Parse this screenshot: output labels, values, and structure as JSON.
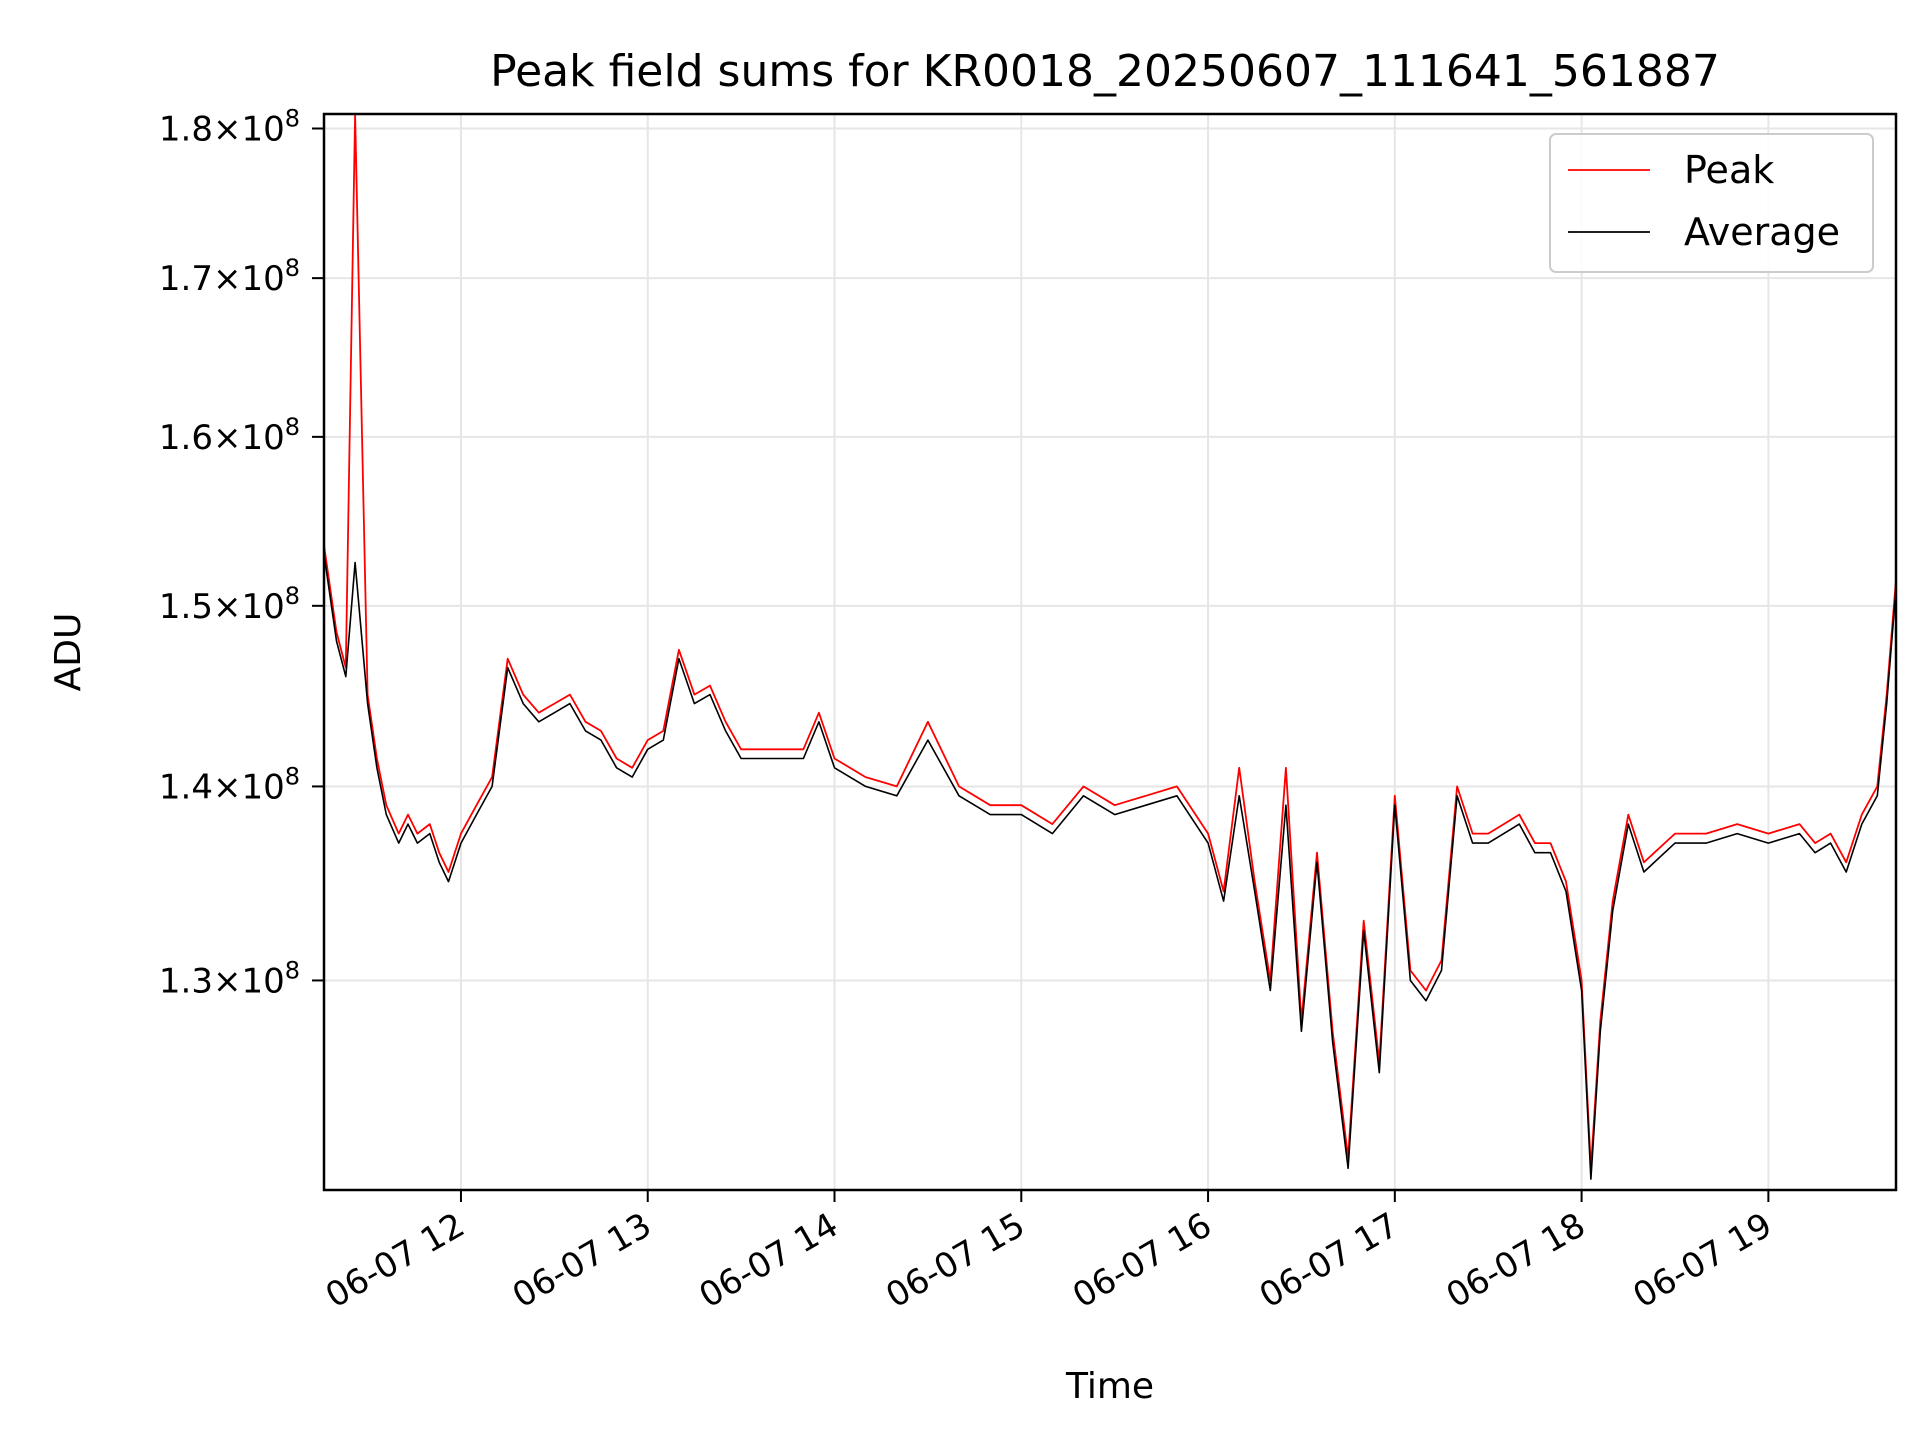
{
  "chart_data": {
    "type": "line",
    "title": "Peak field sums for KR0018_20250607_111641_561887",
    "xlabel": "Time",
    "ylabel": "ADU",
    "y_scale": "log",
    "xlim": [
      "2025-06-07 11:16",
      "2025-06-07 19:41"
    ],
    "ylim": [
      120000000,
      181000000
    ],
    "grid": true,
    "legend_position": "top-right",
    "x_ticks": [
      {
        "t": "2025-06-07 12:00",
        "label": "06-07 12"
      },
      {
        "t": "2025-06-07 13:00",
        "label": "06-07 13"
      },
      {
        "t": "2025-06-07 14:00",
        "label": "06-07 14"
      },
      {
        "t": "2025-06-07 15:00",
        "label": "06-07 15"
      },
      {
        "t": "2025-06-07 16:00",
        "label": "06-07 16"
      },
      {
        "t": "2025-06-07 17:00",
        "label": "06-07 17"
      },
      {
        "t": "2025-06-07 18:00",
        "label": "06-07 18"
      },
      {
        "t": "2025-06-07 19:00",
        "label": "06-07 19"
      }
    ],
    "y_ticks": [
      {
        "value": 130000000,
        "mantissa": "1.3",
        "exponent": "8"
      },
      {
        "value": 140000000,
        "mantissa": "1.4",
        "exponent": "8"
      },
      {
        "value": 150000000,
        "mantissa": "1.5",
        "exponent": "8"
      },
      {
        "value": 160000000,
        "mantissa": "1.6",
        "exponent": "8"
      },
      {
        "value": 170000000,
        "mantissa": "1.7",
        "exponent": "8"
      },
      {
        "value": 180000000,
        "mantissa": "1.8",
        "exponent": "8"
      }
    ],
    "times_hhmm": [
      "11:16",
      "11:20",
      "11:23",
      "11:26",
      "11:30",
      "11:33",
      "11:36",
      "11:40",
      "11:43",
      "11:46",
      "11:50",
      "11:53",
      "11:56",
      "12:00",
      "12:05",
      "12:10",
      "12:15",
      "12:20",
      "12:25",
      "12:30",
      "12:35",
      "12:40",
      "12:45",
      "12:50",
      "12:55",
      "13:00",
      "13:05",
      "13:10",
      "13:15",
      "13:20",
      "13:25",
      "13:30",
      "13:35",
      "13:40",
      "13:45",
      "13:50",
      "13:55",
      "14:00",
      "14:10",
      "14:20",
      "14:30",
      "14:40",
      "14:50",
      "15:00",
      "15:10",
      "15:20",
      "15:30",
      "15:40",
      "15:50",
      "16:00",
      "16:05",
      "16:10",
      "16:15",
      "16:20",
      "16:25",
      "16:30",
      "16:35",
      "16:40",
      "16:45",
      "16:50",
      "16:55",
      "17:00",
      "17:05",
      "17:10",
      "17:15",
      "17:20",
      "17:25",
      "17:30",
      "17:35",
      "17:40",
      "17:45",
      "17:50",
      "17:55",
      "18:00",
      "18:03",
      "18:06",
      "18:10",
      "18:15",
      "18:20",
      "18:30",
      "18:40",
      "18:50",
      "19:00",
      "19:10",
      "19:15",
      "19:20",
      "19:25",
      "19:30",
      "19:35",
      "19:38",
      "19:41"
    ],
    "series": [
      {
        "name": "Peak",
        "color": "#ff0000",
        "values": [
          153500000,
          148500000,
          146500000,
          181000000,
          145000000,
          141500000,
          139000000,
          137500000,
          138500000,
          137500000,
          138000000,
          136500000,
          135500000,
          137500000,
          139000000,
          140500000,
          147000000,
          145000000,
          144000000,
          144500000,
          145000000,
          143500000,
          143000000,
          141500000,
          141000000,
          142500000,
          143000000,
          147500000,
          145000000,
          145500000,
          143500000,
          142000000,
          142000000,
          142000000,
          142000000,
          142000000,
          144000000,
          141500000,
          140500000,
          140000000,
          143500000,
          140000000,
          139000000,
          139000000,
          138000000,
          140000000,
          139000000,
          139500000,
          140000000,
          137500000,
          134500000,
          141000000,
          135000000,
          130000000,
          141000000,
          128000000,
          136500000,
          127500000,
          121500000,
          133000000,
          126000000,
          139500000,
          130500000,
          129500000,
          131000000,
          140000000,
          137500000,
          137500000,
          138000000,
          138500000,
          137000000,
          137000000,
          135000000,
          130000000,
          121000000,
          128000000,
          134000000,
          138500000,
          136000000,
          137500000,
          137500000,
          138000000,
          137500000,
          138000000,
          137000000,
          137500000,
          136000000,
          138500000,
          140000000,
          145000000,
          151500000
        ]
      },
      {
        "name": "Average",
        "color": "#000000",
        "values": [
          153000000,
          148000000,
          146000000,
          152500000,
          144500000,
          141000000,
          138500000,
          137000000,
          138000000,
          137000000,
          137500000,
          136000000,
          135000000,
          137000000,
          138500000,
          140000000,
          146500000,
          144500000,
          143500000,
          144000000,
          144500000,
          143000000,
          142500000,
          141000000,
          140500000,
          142000000,
          142500000,
          147000000,
          144500000,
          145000000,
          143000000,
          141500000,
          141500000,
          141500000,
          141500000,
          141500000,
          143500000,
          141000000,
          140000000,
          139500000,
          142500000,
          139500000,
          138500000,
          138500000,
          137500000,
          139500000,
          138500000,
          139000000,
          139500000,
          137000000,
          134000000,
          139500000,
          134500000,
          129500000,
          139000000,
          127500000,
          136000000,
          127000000,
          121000000,
          132500000,
          125500000,
          139000000,
          130000000,
          129000000,
          130500000,
          139500000,
          137000000,
          137000000,
          137500000,
          138000000,
          136500000,
          136500000,
          134500000,
          129500000,
          120500000,
          127500000,
          133500000,
          138000000,
          135500000,
          137000000,
          137000000,
          137500000,
          137000000,
          137500000,
          136500000,
          137000000,
          135500000,
          138000000,
          139500000,
          144500000,
          151000000
        ]
      }
    ]
  }
}
